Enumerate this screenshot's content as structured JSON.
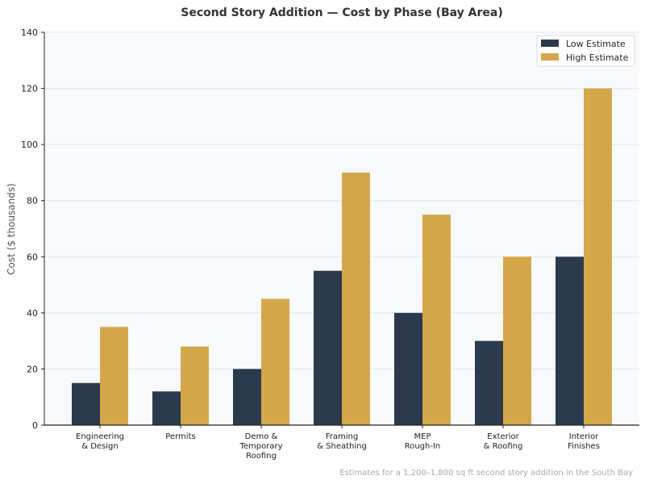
{
  "chart_data": {
    "type": "bar",
    "title": "Second Story Addition — Cost by Phase (Bay Area)",
    "xlabel": "",
    "ylabel": "Cost ($ thousands)",
    "ylim": [
      0,
      140
    ],
    "yticks": [
      "0",
      "20",
      "40",
      "60",
      "80",
      "100",
      "120",
      "140"
    ],
    "grid": "horizontal",
    "legend_position": "top-right",
    "categories": [
      [
        "Engineering",
        "& Design"
      ],
      [
        "Permits"
      ],
      [
        "Demo &",
        "Temporary",
        "Roofing"
      ],
      [
        "Framing",
        "& Sheathing"
      ],
      [
        "MEP",
        "Rough-In"
      ],
      [
        "Exterior",
        "& Roofing"
      ],
      [
        "Interior",
        "Finishes"
      ]
    ],
    "series": [
      {
        "name": "Low Estimate",
        "color": "#2b3a4d",
        "values": [
          15,
          12,
          20,
          55,
          40,
          30,
          60
        ]
      },
      {
        "name": "High Estimate",
        "color": "#d4a74a",
        "values": [
          35,
          28,
          45,
          90,
          75,
          60,
          120
        ]
      }
    ],
    "footnote": "Estimates for a 1,200–1,800 sq ft second story addition in the South Bay",
    "plot_background": "#f8f9fb"
  }
}
